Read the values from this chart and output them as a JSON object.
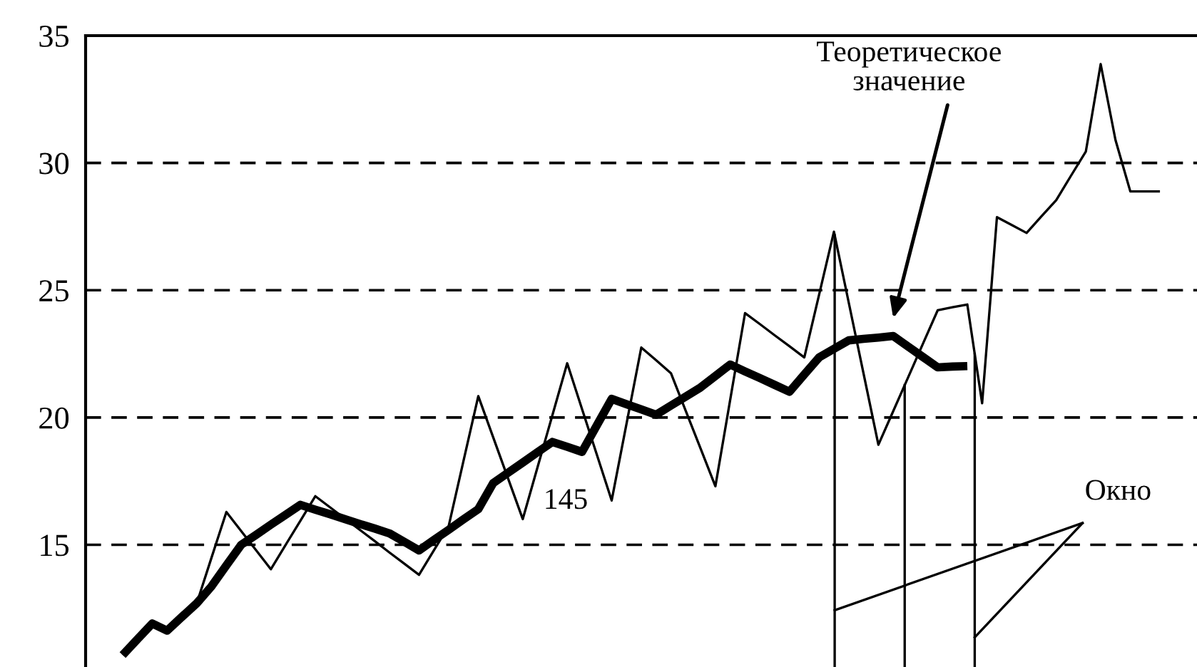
{
  "chart_data": {
    "type": "line",
    "categories": [
      null,
      null,
      null,
      null,
      null,
      null,
      null,
      null,
      null,
      null,
      null,
      null,
      null,
      null,
      null,
      null,
      null,
      null,
      null,
      null,
      null,
      null,
      null,
      null,
      null,
      null,
      null,
      null,
      null,
      null,
      null,
      null,
      null,
      null,
      null,
      null,
      null,
      null,
      null,
      null,
      null,
      null,
      null,
      null,
      null,
      null,
      null,
      null,
      null,
      null,
      null,
      null,
      null,
      null,
      null,
      null,
      null,
      null,
      null,
      null,
      null,
      null,
      null,
      null,
      null,
      null,
      null,
      null,
      null,
      null,
      null,
      null,
      null,
      null,
      null
    ],
    "series": [
      {
        "color": "#000000",
        "values": [
          null,
          null,
          10.67,
          11.29,
          11.91,
          11.63,
          12.17,
          12.7,
          14.5,
          16.29,
          15.54,
          14.79,
          14.04,
          15.0,
          15.95,
          16.91,
          16.47,
          16.03,
          15.59,
          15.15,
          14.7,
          14.26,
          13.82,
          14.78,
          15.73,
          18.29,
          20.84,
          19.23,
          17.62,
          16.01,
          18.05,
          20.09,
          22.13,
          20.33,
          18.54,
          16.74,
          19.75,
          22.75,
          22.25,
          21.74,
          20.26,
          18.78,
          17.3,
          20.7,
          24.1,
          23.67,
          23.23,
          22.8,
          22.36,
          24.83,
          27.3,
          24.51,
          21.72,
          18.93,
          20.25,
          21.57,
          22.89,
          24.21,
          24.33,
          24.44,
          20.56,
          27.87,
          27.56,
          27.25,
          27.9,
          28.54,
          29.5,
          30.45,
          33.88,
          30.9,
          28.88,
          28.88,
          28.88,
          null,
          null
        ]
      },
      {
        "color": "#000000",
        "values": [
          null,
          null,
          10.67,
          11.29,
          11.91,
          11.63,
          12.17,
          12.7,
          13.37,
          14.19,
          15.0,
          15.39,
          15.79,
          16.18,
          16.57,
          16.38,
          16.2,
          16.01,
          15.82,
          15.64,
          15.45,
          15.12,
          14.78,
          15.19,
          15.59,
          16.0,
          16.4,
          17.42,
          17.83,
          18.23,
          18.64,
          19.04,
          18.85,
          18.65,
          19.69,
          20.73,
          20.52,
          20.32,
          20.11,
          20.47,
          20.82,
          21.18,
          21.63,
          22.08,
          21.81,
          21.55,
          21.28,
          21.01,
          21.69,
          22.36,
          22.7,
          23.03,
          23.09,
          23.14,
          23.2,
          22.79,
          22.38,
          21.97,
          22.0,
          22.02,
          null,
          null,
          null,
          null,
          null,
          null,
          null,
          null,
          null,
          null,
          null,
          null,
          null,
          null,
          null
        ]
      }
    ],
    "ylim": [
      10.2,
      35
    ],
    "yticks": [
      15,
      20,
      25,
      30,
      35
    ],
    "tick_labels": "y",
    "grid": "y",
    "legend": false,
    "line_style": "solid",
    "annotations": [
      "Теоретическое\nзначение",
      "Окно",
      "145"
    ]
  }
}
